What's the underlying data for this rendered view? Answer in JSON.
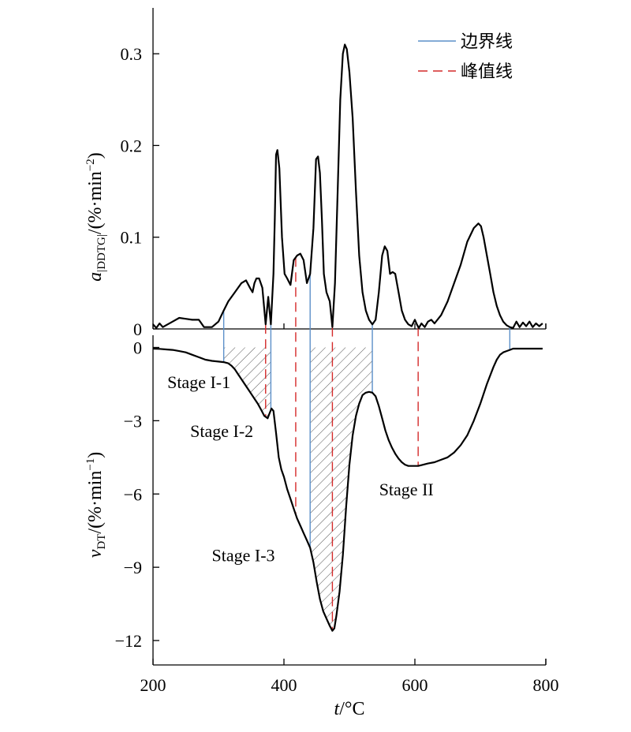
{
  "chart_data": {
    "type": "line",
    "xlabel_var": "t",
    "xlabel_unit": "/°C",
    "xlim": [
      200,
      800
    ],
    "x_ticks": [
      "200",
      "400",
      "600",
      "800"
    ],
    "colors": {
      "curve": "#000000",
      "boundary": "#5b8fc9",
      "peak": "#d42a2a",
      "hatch": "#555555"
    },
    "legend": {
      "position": "top-right",
      "items": [
        {
          "label": "边界线",
          "style": "solid",
          "color": "#5b8fc9"
        },
        {
          "label": "峰值线",
          "style": "dashed",
          "color": "#d42a2a"
        }
      ]
    },
    "panels": [
      {
        "id": "top",
        "ylabel_main": "a",
        "ylabel_sub": "|DDTG|",
        "ylabel_unit": "/(%·min",
        "ylabel_unit_exp": "−2",
        "ylabel_close": ")",
        "ylim": [
          0,
          0.35
        ],
        "y_ticks": [
          {
            "value": 0,
            "label": "0"
          },
          {
            "value": 0.1,
            "label": "0.1"
          },
          {
            "value": 0.2,
            "label": "0.2"
          },
          {
            "value": 0.3,
            "label": "0.3"
          }
        ],
        "series": [
          {
            "x": [
              200,
              205,
              210,
              215,
              220,
              230,
              240,
              250,
              260,
              270,
              278,
              290,
              300,
              308,
              315,
              325,
              335,
              342,
              348,
              352,
              355,
              358,
              362,
              367,
              372,
              376,
              380,
              384,
              386,
              388,
              390,
              393,
              397,
              401,
              405,
              410,
              415,
              420,
              425,
              430,
              435,
              440,
              445,
              449,
              452,
              455,
              458,
              461,
              465,
              470,
              474,
              478,
              482,
              486,
              490,
              493,
              496,
              500,
              505,
              510,
              515,
              520,
              525,
              530,
              535,
              540,
              545,
              550,
              554,
              558,
              562,
              566,
              570,
              575,
              580,
              585,
              590,
              595,
              600,
              603,
              606,
              610,
              615,
              620,
              625,
              630,
              640,
              650,
              660,
              670,
              680,
              690,
              697,
              701,
              705,
              710,
              715,
              720,
              725,
              730,
              735,
              740,
              745,
              750,
              755,
              760,
              765,
              770,
              775,
              780,
              785,
              790,
              795
            ],
            "y": [
              0.005,
              0.001,
              0.006,
              0.002,
              0.004,
              0.008,
              0.012,
              0.011,
              0.01,
              0.01,
              0.002,
              0.002,
              0.008,
              0.02,
              0.03,
              0.04,
              0.05,
              0.053,
              0.045,
              0.04,
              0.05,
              0.055,
              0.055,
              0.045,
              0.005,
              0.035,
              0.005,
              0.06,
              0.12,
              0.19,
              0.195,
              0.175,
              0.1,
              0.06,
              0.055,
              0.048,
              0.075,
              0.08,
              0.082,
              0.075,
              0.05,
              0.06,
              0.11,
              0.185,
              0.188,
              0.17,
              0.12,
              0.06,
              0.04,
              0.03,
              0.002,
              0.05,
              0.15,
              0.25,
              0.3,
              0.31,
              0.305,
              0.28,
              0.23,
              0.15,
              0.08,
              0.04,
              0.02,
              0.01,
              0.005,
              0.01,
              0.04,
              0.08,
              0.09,
              0.085,
              0.06,
              0.062,
              0.06,
              0.04,
              0.02,
              0.01,
              0.005,
              0.003,
              0.01,
              0.005,
              0.001,
              0.006,
              0.002,
              0.008,
              0.01,
              0.006,
              0.015,
              0.03,
              0.05,
              0.07,
              0.095,
              0.11,
              0.115,
              0.112,
              0.1,
              0.08,
              0.06,
              0.04,
              0.025,
              0.015,
              0.008,
              0.004,
              0.002,
              0.001,
              0.008,
              0.002,
              0.007,
              0.003,
              0.008,
              0.002,
              0.006,
              0.003,
              0.006
            ]
          }
        ]
      },
      {
        "id": "bottom",
        "ylabel_main": "v",
        "ylabel_sub": "DT",
        "ylabel_unit": "/(%·min",
        "ylabel_unit_exp": "−1",
        "ylabel_close": ")",
        "ylim": [
          -13,
          0.5
        ],
        "y_ticks": [
          {
            "value": 0,
            "label": "0"
          },
          {
            "value": -3,
            "label": "−3"
          },
          {
            "value": -6,
            "label": "−6"
          },
          {
            "value": -9,
            "label": "−9"
          },
          {
            "value": -12,
            "label": "−12"
          }
        ],
        "series": [
          {
            "x": [
              200,
              210,
              220,
              230,
              240,
              250,
              260,
              270,
              280,
              290,
              300,
              308,
              315,
              320,
              325,
              330,
              335,
              340,
              345,
              350,
              355,
              360,
              365,
              370,
              375,
              378,
              381,
              384,
              388,
              392,
              396,
              400,
              405,
              410,
              415,
              420,
              425,
              430,
              435,
              440,
              445,
              450,
              455,
              460,
              465,
              470,
              474,
              477,
              480,
              485,
              490,
              495,
              500,
              505,
              510,
              515,
              520,
              525,
              530,
              535,
              540,
              545,
              550,
              555,
              560,
              565,
              570,
              575,
              580,
              585,
              590,
              595,
              600,
              605,
              610,
              620,
              630,
              640,
              650,
              660,
              670,
              680,
              690,
              700,
              710,
              720,
              725,
              730,
              735,
              740,
              745,
              750,
              760,
              770,
              780,
              790,
              795
            ],
            "y": [
              -0.05,
              -0.06,
              -0.08,
              -0.1,
              -0.15,
              -0.2,
              -0.3,
              -0.4,
              -0.5,
              -0.55,
              -0.58,
              -0.6,
              -0.65,
              -0.75,
              -0.9,
              -1.1,
              -1.3,
              -1.5,
              -1.7,
              -1.9,
              -2.1,
              -2.3,
              -2.55,
              -2.8,
              -2.9,
              -2.7,
              -2.5,
              -2.6,
              -3.5,
              -4.5,
              -5.0,
              -5.3,
              -5.8,
              -6.2,
              -6.6,
              -7.0,
              -7.3,
              -7.6,
              -7.9,
              -8.2,
              -8.8,
              -9.6,
              -10.3,
              -10.8,
              -11.1,
              -11.4,
              -11.6,
              -11.5,
              -11.0,
              -10.0,
              -8.5,
              -6.5,
              -4.8,
              -3.6,
              -2.8,
              -2.3,
              -1.95,
              -1.85,
              -1.82,
              -1.85,
              -2.0,
              -2.4,
              -2.9,
              -3.4,
              -3.8,
              -4.1,
              -4.35,
              -4.55,
              -4.7,
              -4.8,
              -4.85,
              -4.85,
              -4.85,
              -4.85,
              -4.82,
              -4.75,
              -4.7,
              -4.6,
              -4.5,
              -4.3,
              -4.0,
              -3.6,
              -3.0,
              -2.3,
              -1.5,
              -0.8,
              -0.5,
              -0.3,
              -0.2,
              -0.15,
              -0.1,
              -0.05,
              -0.05,
              -0.05,
              -0.05,
              -0.05,
              -0.05
            ]
          }
        ]
      }
    ],
    "boundary_lines": [
      308,
      380,
      440,
      535,
      745
    ],
    "peak_lines": [
      372,
      418,
      474,
      605
    ],
    "hatched_regions": [
      [
        308,
        380
      ],
      [
        440,
        535
      ]
    ],
    "stage_labels": [
      {
        "text": "Stage I-1",
        "x": 270,
        "y": -1.4
      },
      {
        "text": "Stage I-2",
        "x": 305,
        "y": -3.4
      },
      {
        "text": "Stage I-3",
        "x": 338,
        "y": -8.5
      },
      {
        "text": "Stage II",
        "x": 587,
        "y": -5.8
      }
    ]
  }
}
